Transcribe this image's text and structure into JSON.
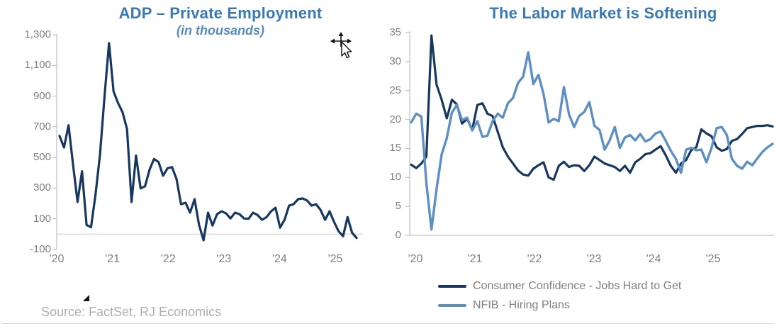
{
  "source_note": "Source: FactSet, RJ Economics",
  "chart_data": [
    {
      "type": "line",
      "title": "ADP – Private Employment",
      "subtitle": "(in thousands)",
      "x_unit": "month",
      "x_start": "2020-01",
      "x_tick_labels": [
        "'20",
        "'21",
        "'22",
        "'23",
        "'24",
        "'25"
      ],
      "y_ticks": [
        1300,
        1100,
        900,
        700,
        500,
        300,
        100,
        -100
      ],
      "y_tick_labels": [
        "1,300",
        "1,100",
        "900",
        "700",
        "500",
        "300",
        "100",
        "-100"
      ],
      "ylim": [
        -100,
        1300
      ],
      "grid": "zero-line-only",
      "legend_position": "none",
      "series": [
        {
          "name": "ADP – Private Employment",
          "color": "#17375E",
          "values": [
            640,
            565,
            710,
            455,
            210,
            410,
            60,
            45,
            260,
            520,
            900,
            1245,
            930,
            855,
            795,
            685,
            210,
            512,
            298,
            312,
            420,
            490,
            470,
            381,
            430,
            437,
            358,
            195,
            205,
            140,
            228,
            60,
            -40,
            140,
            56,
            130,
            149,
            135,
            102,
            140,
            130,
            102,
            100,
            140,
            125,
            93,
            111,
            149,
            172,
            42,
            93,
            186,
            195,
            228,
            233,
            219,
            186,
            195,
            158,
            93,
            149,
            79,
            19,
            -14,
            111,
            9,
            -25
          ]
        }
      ]
    },
    {
      "type": "line",
      "title": "The Labor Market is Softening",
      "subtitle": "",
      "x_unit": "month",
      "x_start": "2020-01",
      "x_tick_labels": [
        "'20",
        "'21",
        "'22",
        "'23",
        "'24",
        "'25"
      ],
      "y_ticks": [
        35,
        30,
        25,
        20,
        15,
        10,
        5,
        0
      ],
      "y_tick_labels": [
        "35",
        "30",
        "25",
        "20",
        "15",
        "10",
        "5",
        "0"
      ],
      "ylim": [
        0,
        35
      ],
      "grid": "baseline-only",
      "legend_position": "bottom",
      "series": [
        {
          "name": "Consumer Confidence - Jobs Hard to Get",
          "color": "#17375E",
          "values": [
            12.2,
            11.6,
            12.4,
            13.6,
            34.5,
            26.0,
            23.4,
            20.2,
            23.4,
            22.6,
            19.3,
            20.1,
            18.2,
            22.5,
            22.8,
            21.0,
            20.6,
            17.9,
            15.2,
            13.6,
            12.4,
            11.2,
            10.5,
            10.3,
            11.5,
            12.1,
            12.6,
            10.0,
            9.6,
            12.0,
            12.7,
            11.8,
            12.1,
            12.0,
            11.1,
            12.1,
            13.6,
            13.0,
            12.4,
            12.1,
            11.8,
            11.1,
            12.0,
            10.8,
            12.6,
            13.2,
            14.0,
            14.2,
            14.8,
            15.4,
            13.8,
            12.0,
            10.8,
            12.4,
            13.0,
            14.7,
            15.2,
            18.3,
            17.6,
            17.1,
            15.2,
            14.6,
            14.9,
            16.3,
            16.6,
            17.5,
            18.5,
            18.7,
            18.9,
            18.9,
            19.0,
            18.8
          ]
        },
        {
          "name": "NFIB - Hiring Plans",
          "color": "#5E8FC0",
          "values": [
            19.5,
            21.0,
            20.5,
            9.0,
            1.0,
            8.0,
            14.0,
            16.8,
            21.2,
            22.5,
            19.9,
            20.3,
            18.1,
            19.7,
            17.0,
            17.2,
            19.7,
            21.0,
            20.3,
            22.8,
            23.7,
            26.3,
            27.4,
            31.6,
            26.1,
            27.7,
            24.4,
            19.5,
            20.1,
            19.7,
            25.6,
            20.9,
            18.7,
            20.6,
            21.3,
            23.0,
            18.9,
            18.2,
            14.8,
            16.4,
            18.7,
            15.1,
            16.9,
            17.3,
            16.4,
            17.5,
            16.2,
            16.6,
            17.6,
            17.9,
            16.3,
            14.6,
            13.2,
            10.8,
            14.8,
            15.1,
            14.7,
            14.8,
            12.6,
            15.1,
            18.5,
            18.7,
            17.3,
            13.2,
            12.0,
            11.5,
            12.7,
            12.1,
            13.3,
            14.4,
            15.2,
            15.8
          ]
        }
      ]
    }
  ]
}
